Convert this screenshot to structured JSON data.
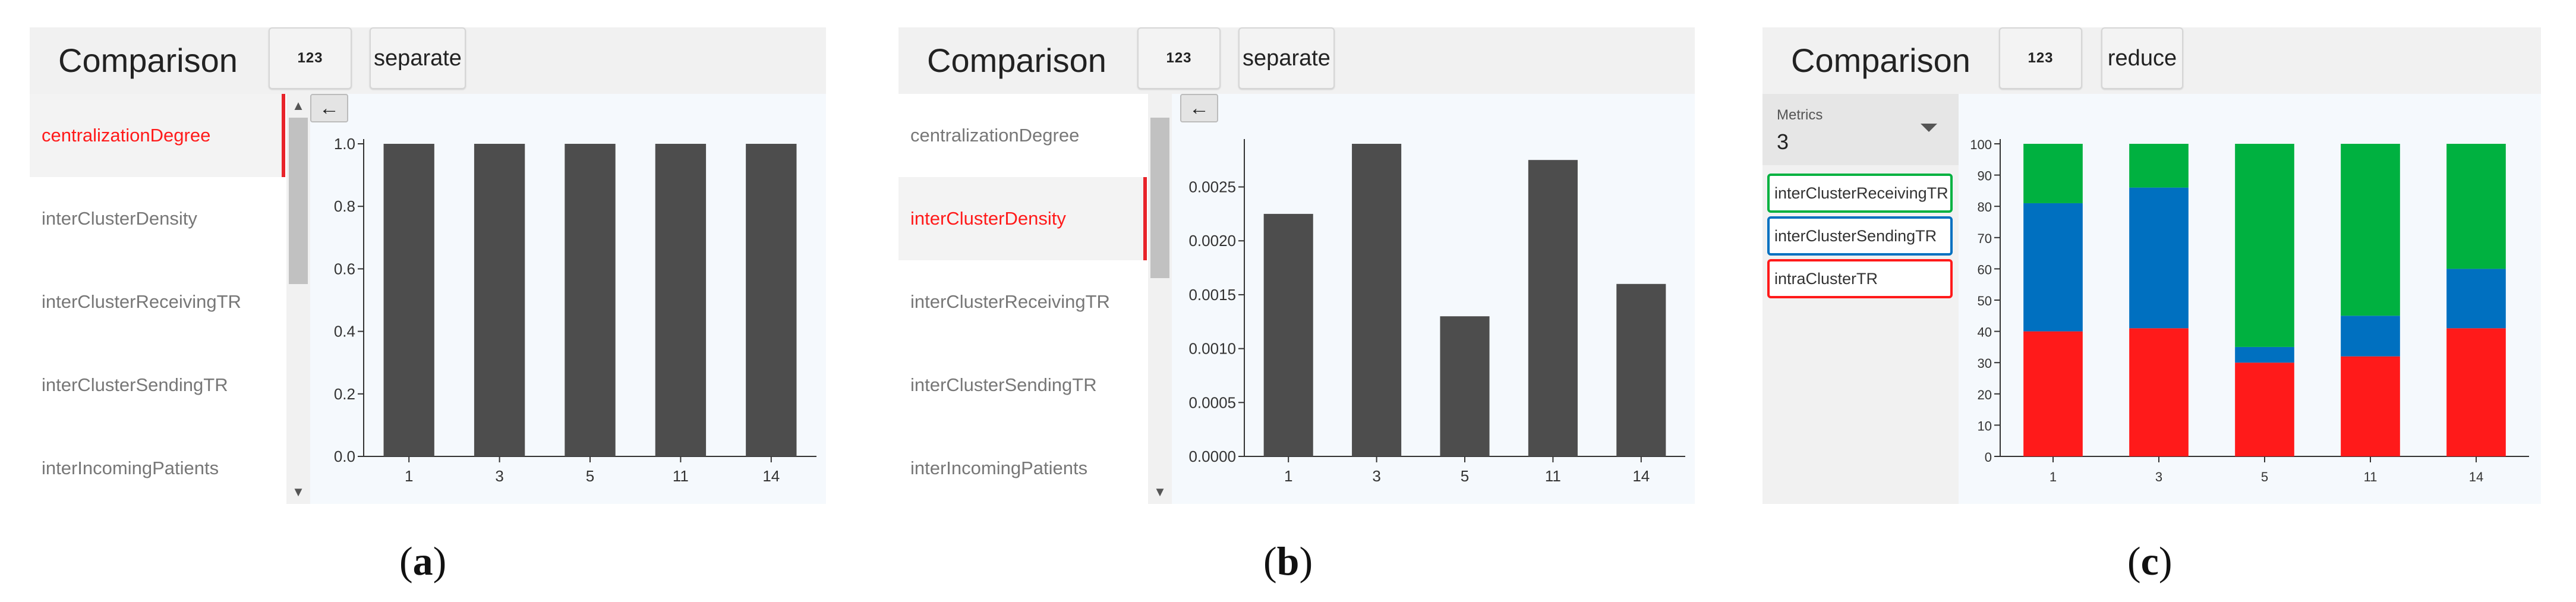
{
  "panel_a": {
    "title": "Comparison",
    "format_button": "123",
    "mode_button": "separate",
    "metrics": [
      "centralizationDegree",
      "interClusterDensity",
      "interClusterReceivingTR",
      "interClusterSendingTR",
      "interIncomingPatients"
    ],
    "selected_metric": "centralizationDegree",
    "back_icon": "arrow-left-icon"
  },
  "panel_b": {
    "title": "Comparison",
    "format_button": "123",
    "mode_button": "separate",
    "metrics": [
      "centralizationDegree",
      "interClusterDensity",
      "interClusterReceivingTR",
      "interClusterSendingTR",
      "interIncomingPatients"
    ],
    "selected_metric": "interClusterDensity",
    "back_icon": "arrow-left-icon"
  },
  "panel_c": {
    "title": "Comparison",
    "format_button": "123",
    "mode_button": "reduce",
    "select_label": "Metrics",
    "select_value": "3",
    "chips": [
      {
        "label": "interClusterReceivingTR",
        "color": "#00b140"
      },
      {
        "label": "interClusterSendingTR",
        "color": "#0070c0"
      },
      {
        "label": "intraClusterTR",
        "color": "#ff1a1a"
      }
    ]
  },
  "captions": {
    "a": "a",
    "b": "b",
    "c": "c"
  },
  "chart_data": [
    {
      "type": "bar",
      "categories": [
        "1",
        "3",
        "5",
        "11",
        "14"
      ],
      "values": [
        1.0,
        1.0,
        1.0,
        1.0,
        1.0
      ],
      "ylim": [
        0,
        1.0
      ],
      "yticks": [
        "0.0",
        "0.2",
        "0.4",
        "0.6",
        "0.8",
        "1.0"
      ],
      "bar_color": "#4d4d4d"
    },
    {
      "type": "bar",
      "categories": [
        "1",
        "3",
        "5",
        "11",
        "14"
      ],
      "values": [
        0.00225,
        0.0029,
        0.0013,
        0.00275,
        0.0016
      ],
      "ylim": [
        0,
        0.0029
      ],
      "yticks": [
        "0.0000",
        "0.0005",
        "0.0010",
        "0.0015",
        "0.0020",
        "0.0025"
      ],
      "bar_color": "#4d4d4d"
    },
    {
      "type": "bar",
      "stacked": true,
      "categories": [
        "1",
        "3",
        "5",
        "11",
        "14"
      ],
      "series": [
        {
          "name": "intraClusterTR",
          "color": "#ff1a1a",
          "values": [
            40,
            41,
            30,
            32,
            41
          ]
        },
        {
          "name": "interClusterSendingTR",
          "color": "#0070c0",
          "values": [
            41,
            45,
            5,
            13,
            19
          ]
        },
        {
          "name": "interClusterReceivingTR",
          "color": "#00b140",
          "values": [
            19,
            14,
            65,
            55,
            40
          ]
        }
      ],
      "ylim": [
        0,
        100
      ],
      "yticks": [
        "0",
        "10",
        "20",
        "30",
        "40",
        "50",
        "60",
        "70",
        "80",
        "90",
        "100"
      ]
    }
  ]
}
